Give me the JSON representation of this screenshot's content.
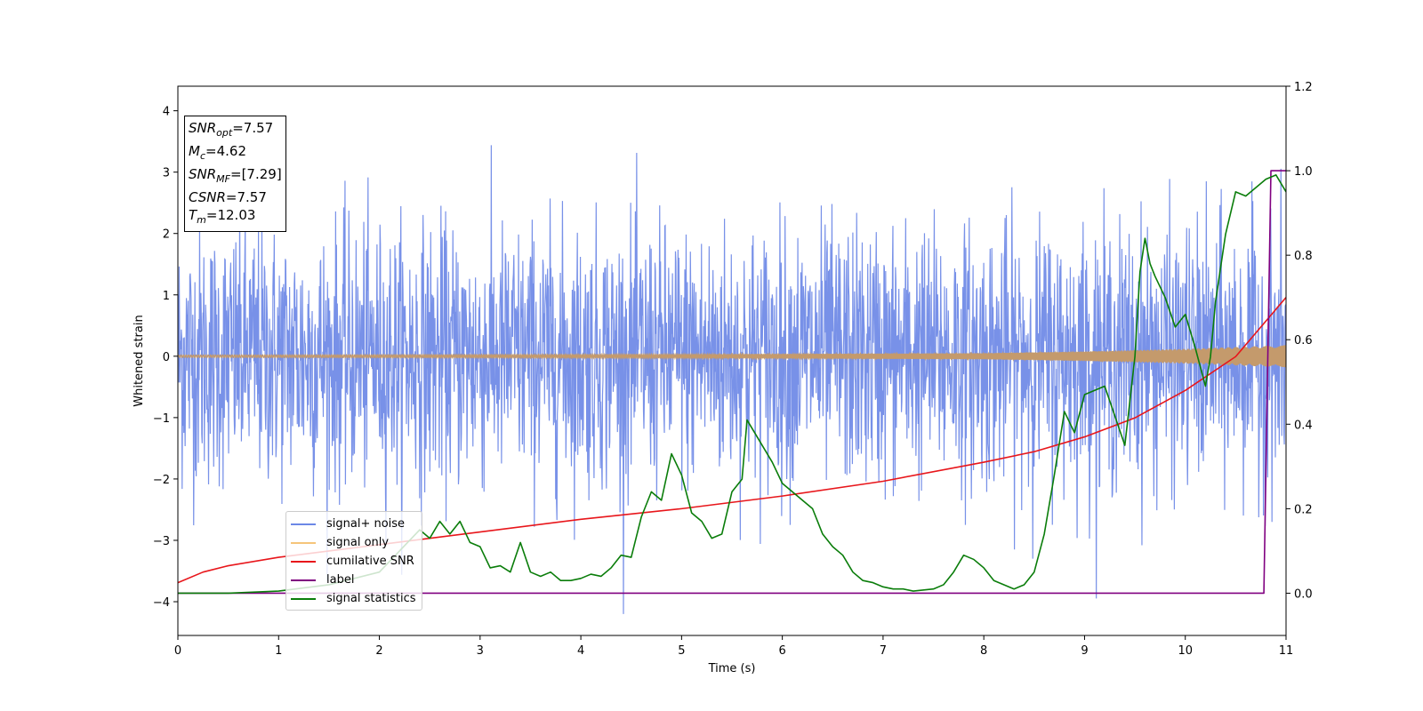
{
  "chart_data": {
    "type": "line",
    "xlabel": "Time (s)",
    "ylabel": "Whitened strain",
    "xlim": [
      0,
      11
    ],
    "ylim_left": [
      -4.55,
      4.4
    ],
    "ylim_right": [
      -0.1,
      1.2
    ],
    "x_ticks": [
      "0",
      "1",
      "2",
      "3",
      "4",
      "5",
      "6",
      "7",
      "8",
      "9",
      "10",
      "11"
    ],
    "y_ticks_left": [
      "−4",
      "−3",
      "−2",
      "−1",
      "0",
      "1",
      "2",
      "3",
      "4"
    ],
    "y_ticks_left_values": [
      -4,
      -3,
      -2,
      -1,
      0,
      1,
      2,
      3,
      4
    ],
    "y_ticks_right": [
      "0.0",
      "0.2",
      "0.4",
      "0.6",
      "0.8",
      "1.0",
      "1.2"
    ],
    "y_ticks_right_values": [
      0.0,
      0.2,
      0.4,
      0.6,
      0.8,
      1.0,
      1.2
    ],
    "annotation": {
      "snr_opt": "7.57",
      "mc": "4.62",
      "snr_mf": "[7.29]",
      "csnr": "7.57",
      "tm": "12.03"
    },
    "series": [
      {
        "name": "signal+ noise",
        "axis": "left",
        "color": "#6c88e6",
        "description_values": "whitened noise, approx. Gaussian, range about -4.2 to 4.0, sampled densely over 0-11 s"
      },
      {
        "name": "signal only",
        "axis": "left",
        "color": "#f5c57a",
        "envelope": {
          "x": [
            0,
            5,
            8,
            9,
            10,
            11
          ],
          "amp": [
            0.02,
            0.03,
            0.05,
            0.08,
            0.12,
            0.18
          ]
        }
      },
      {
        "name": "cumilative SNR",
        "axis": "right",
        "color": "#e8161b",
        "x": [
          0,
          0.25,
          0.5,
          1,
          1.5,
          2,
          3,
          4,
          5,
          6,
          7,
          8,
          8.5,
          9,
          9.5,
          10,
          10.5,
          11
        ],
        "y": [
          0.025,
          0.05,
          0.065,
          0.085,
          0.1,
          0.115,
          0.145,
          0.175,
          0.2,
          0.23,
          0.265,
          0.31,
          0.335,
          0.37,
          0.415,
          0.48,
          0.56,
          0.7
        ]
      },
      {
        "name": "label",
        "axis": "right",
        "color": "#800080",
        "x": [
          0,
          10.78,
          10.85,
          11
        ],
        "y": [
          0.0,
          0.0,
          1.0,
          1.0
        ]
      },
      {
        "name": "signal statistics",
        "axis": "right",
        "color": "#0a7d0a",
        "x": [
          0,
          0.5,
          1.0,
          1.5,
          2.0,
          2.2,
          2.4,
          2.5,
          2.6,
          2.7,
          2.8,
          2.9,
          3.0,
          3.1,
          3.2,
          3.3,
          3.4,
          3.5,
          3.6,
          3.7,
          3.8,
          3.9,
          4.0,
          4.1,
          4.2,
          4.3,
          4.4,
          4.5,
          4.6,
          4.7,
          4.8,
          4.9,
          5.0,
          5.1,
          5.2,
          5.3,
          5.4,
          5.5,
          5.6,
          5.65,
          5.7,
          5.8,
          5.9,
          6.0,
          6.1,
          6.2,
          6.3,
          6.4,
          6.5,
          6.6,
          6.7,
          6.8,
          6.9,
          7.0,
          7.1,
          7.2,
          7.3,
          7.5,
          7.6,
          7.7,
          7.8,
          7.9,
          8.0,
          8.1,
          8.2,
          8.3,
          8.4,
          8.5,
          8.6,
          8.7,
          8.8,
          8.9,
          9.0,
          9.1,
          9.2,
          9.3,
          9.4,
          9.5,
          9.55,
          9.6,
          9.65,
          9.7,
          9.8,
          9.9,
          10.0,
          10.1,
          10.2,
          10.25,
          10.3,
          10.4,
          10.5,
          10.6,
          10.7,
          10.8,
          10.9,
          11.0
        ],
        "y": [
          0.0,
          0.0,
          0.005,
          0.02,
          0.05,
          0.1,
          0.15,
          0.13,
          0.17,
          0.14,
          0.17,
          0.12,
          0.11,
          0.06,
          0.065,
          0.05,
          0.12,
          0.05,
          0.04,
          0.05,
          0.03,
          0.03,
          0.035,
          0.045,
          0.04,
          0.06,
          0.09,
          0.085,
          0.18,
          0.24,
          0.22,
          0.33,
          0.28,
          0.19,
          0.17,
          0.13,
          0.14,
          0.24,
          0.27,
          0.41,
          0.39,
          0.35,
          0.31,
          0.26,
          0.24,
          0.22,
          0.2,
          0.14,
          0.11,
          0.09,
          0.05,
          0.03,
          0.025,
          0.015,
          0.01,
          0.01,
          0.005,
          0.01,
          0.02,
          0.05,
          0.09,
          0.08,
          0.06,
          0.03,
          0.02,
          0.01,
          0.02,
          0.05,
          0.14,
          0.28,
          0.43,
          0.38,
          0.47,
          0.48,
          0.49,
          0.42,
          0.35,
          0.56,
          0.76,
          0.84,
          0.78,
          0.75,
          0.7,
          0.63,
          0.66,
          0.58,
          0.49,
          0.56,
          0.69,
          0.85,
          0.95,
          0.94,
          0.96,
          0.98,
          0.99,
          0.95
        ]
      }
    ]
  }
}
